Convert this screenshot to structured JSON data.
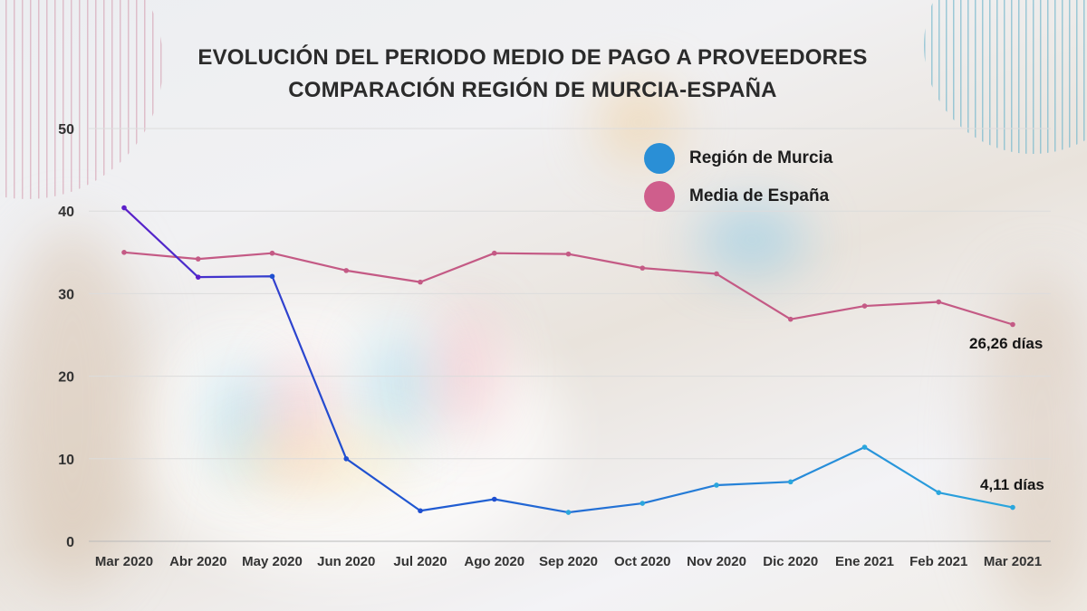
{
  "chart_data": {
    "type": "line",
    "title": "EVOLUCIÓN DEL PERIODO MEDIO DE PAGO A PROVEEDORES",
    "subtitle": "COMPARACIÓN REGIÓN DE MURCIA-ESPAÑA",
    "xlabel": "",
    "ylabel": "",
    "ylim": [
      0,
      50
    ],
    "yticks": [
      0,
      10,
      20,
      30,
      40,
      50
    ],
    "grid": true,
    "legend_position": "top-right",
    "categories": [
      "Mar 2020",
      "Abr 2020",
      "May 2020",
      "Jun 2020",
      "Jul 2020",
      "Ago 2020",
      "Sep 2020",
      "Oct 2020",
      "Nov 2020",
      "Dic 2020",
      "Ene 2021",
      "Feb 2021",
      "Mar 2021"
    ],
    "series": [
      {
        "name": "Región de Murcia",
        "color": "#2a8fd6",
        "gradient": [
          "#5b1fc9",
          "#1f4fd0",
          "#2aa6dd"
        ],
        "values": [
          40.4,
          32.0,
          32.1,
          10.0,
          3.7,
          5.1,
          3.5,
          4.6,
          6.8,
          7.2,
          11.4,
          5.9,
          4.11
        ],
        "end_label": "4,11 días"
      },
      {
        "name": "Media de España",
        "color": "#cf5e8c",
        "line_color": "#c45a85",
        "values": [
          35.0,
          34.2,
          34.9,
          32.8,
          31.4,
          34.9,
          34.8,
          33.1,
          32.4,
          26.9,
          28.5,
          29.0,
          26.26
        ],
        "end_label": "26,26 días"
      }
    ]
  }
}
